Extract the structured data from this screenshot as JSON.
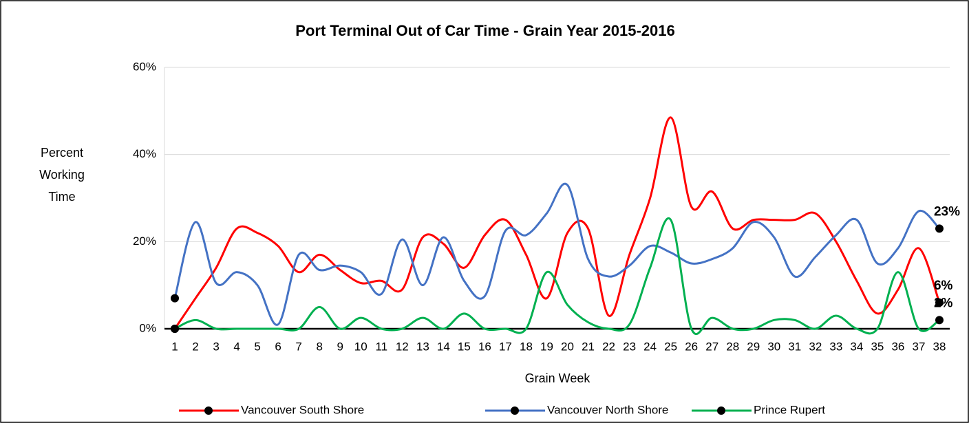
{
  "chart_data": {
    "type": "line",
    "title": "Port Terminal Out of Car Time - Grain Year 2015-2016",
    "x_label": "Grain Week",
    "y_label": "Percent Working Time",
    "categories": [
      1,
      2,
      3,
      4,
      5,
      6,
      7,
      8,
      9,
      10,
      11,
      12,
      13,
      14,
      15,
      16,
      17,
      18,
      19,
      20,
      21,
      22,
      23,
      24,
      25,
      26,
      27,
      28,
      29,
      30,
      31,
      32,
      33,
      34,
      35,
      36,
      37,
      38
    ],
    "series": [
      {
        "name": "Vancouver South Shore",
        "color": "#ff0000",
        "values": [
          0,
          7,
          14,
          23,
          22,
          19,
          13,
          17,
          13.5,
          10.5,
          11,
          9,
          21,
          19.5,
          14,
          21.5,
          25,
          17,
          7,
          22,
          23,
          3,
          17,
          30,
          48.5,
          28,
          31.5,
          23,
          25,
          25,
          25,
          26.5,
          20,
          11,
          3.5,
          9,
          18.5,
          6
        ],
        "value_labels": [
          null,
          null,
          null,
          null,
          null,
          null,
          null,
          null,
          null,
          null,
          null,
          null,
          null,
          null,
          null,
          null,
          null,
          null,
          null,
          null,
          null,
          null,
          null,
          null,
          null,
          null,
          null,
          null,
          null,
          null,
          null,
          null,
          null,
          null,
          null,
          null,
          null,
          "6%"
        ]
      },
      {
        "name": "Vancouver North Shore",
        "color": "#4472c4",
        "values": [
          7,
          24.5,
          10.5,
          13,
          10,
          1,
          17,
          13.5,
          14.5,
          13,
          8,
          20.5,
          10,
          21,
          11,
          7.5,
          22.5,
          21.5,
          26.5,
          33,
          16,
          12,
          14.5,
          19,
          17.5,
          15,
          16,
          18.5,
          24.5,
          21,
          12,
          16.5,
          21.5,
          25,
          15,
          18.5,
          27,
          23
        ],
        "value_labels": [
          null,
          null,
          null,
          null,
          null,
          null,
          null,
          null,
          null,
          null,
          null,
          null,
          null,
          null,
          null,
          null,
          null,
          null,
          null,
          null,
          null,
          null,
          null,
          null,
          null,
          null,
          null,
          null,
          null,
          null,
          null,
          null,
          null,
          null,
          null,
          null,
          null,
          "23%"
        ]
      },
      {
        "name": "Prince Rupert",
        "color": "#00b050",
        "values": [
          0,
          2,
          0,
          0,
          0,
          0,
          0,
          5,
          0,
          2.5,
          0,
          0,
          2.5,
          0,
          3.5,
          0,
          0,
          0,
          13,
          5.5,
          1.5,
          0,
          1,
          14,
          25,
          0,
          2.5,
          0,
          0,
          2,
          2,
          0,
          3,
          0,
          0,
          13,
          0,
          2
        ],
        "value_labels": [
          null,
          null,
          null,
          null,
          null,
          null,
          null,
          null,
          null,
          null,
          null,
          null,
          null,
          null,
          null,
          null,
          null,
          null,
          null,
          null,
          null,
          null,
          null,
          null,
          null,
          null,
          null,
          null,
          null,
          null,
          null,
          null,
          null,
          null,
          null,
          null,
          null,
          "2%"
        ]
      }
    ],
    "ylim": [
      0,
      60
    ],
    "yticks": [
      {
        "value": 0,
        "label": "0%"
      },
      {
        "value": 20,
        "label": "20%"
      },
      {
        "value": 40,
        "label": "40%"
      },
      {
        "value": 60,
        "label": "60%"
      }
    ],
    "grid": true,
    "smooth": true,
    "legend": "bottom"
  }
}
